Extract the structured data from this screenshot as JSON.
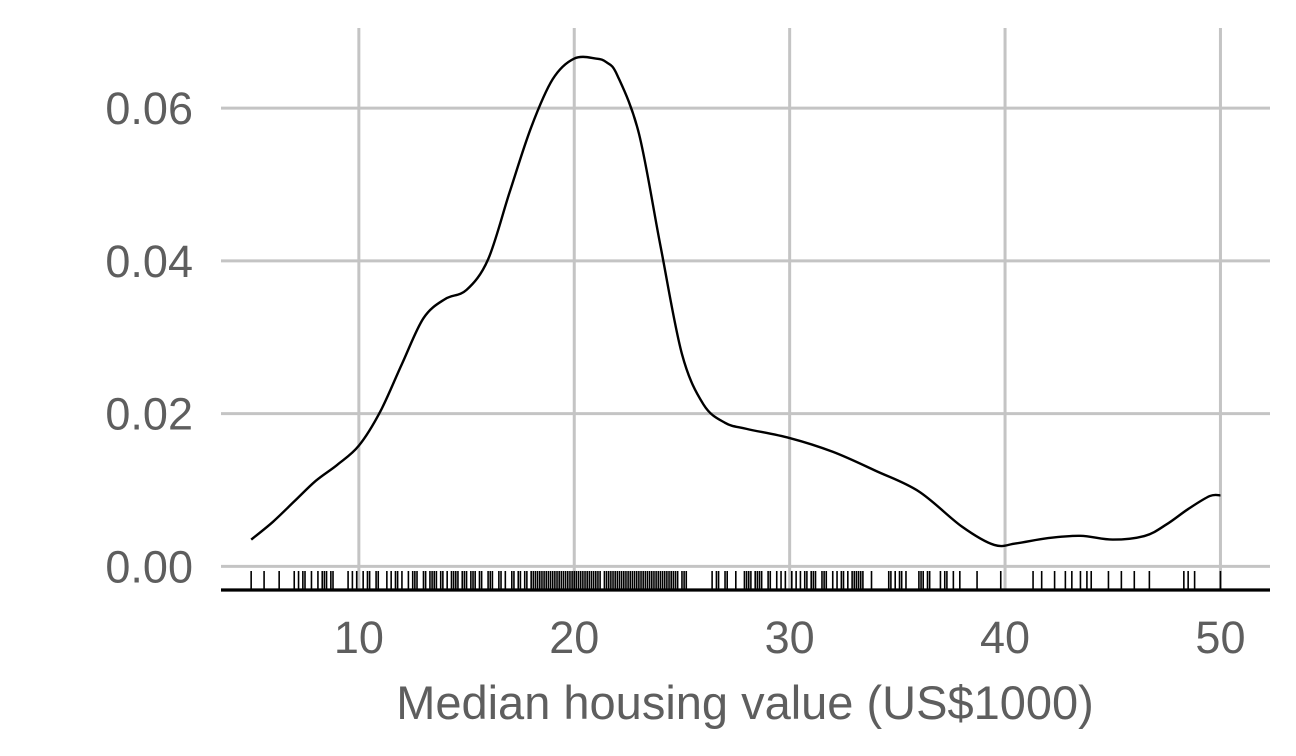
{
  "chart_data": {
    "type": "area",
    "subtype": "density-with-rug",
    "xlabel": "Median housing value (US$1000)",
    "ylabel": "",
    "title": "",
    "xlim": [
      3.6,
      52.3
    ],
    "ylim": [
      -0.0031,
      0.0705
    ],
    "x_ticks": [
      10,
      20,
      30,
      40,
      50
    ],
    "x_tick_labels": [
      "10",
      "20",
      "30",
      "40",
      "50"
    ],
    "y_ticks": [
      0,
      0.02,
      0.04,
      0.06
    ],
    "y_tick_labels": [
      "0.00",
      "0.02",
      "0.04",
      "0.06"
    ],
    "grid": true,
    "legend": "none",
    "curve_color": "#000000",
    "grid_color": "#c4c4c4",
    "density": {
      "x": [
        5.0,
        6.0,
        7.0,
        8.0,
        9.0,
        10.0,
        11.0,
        12.0,
        13.0,
        14.0,
        15.0,
        16.0,
        17.0,
        18.0,
        19.0,
        20.0,
        21.0,
        21.5,
        22.0,
        23.0,
        24.0,
        25.0,
        26.0,
        27.0,
        28.0,
        30.0,
        32.0,
        34.0,
        36.0,
        38.0,
        39.5,
        40.5,
        42.0,
        43.5,
        45.0,
        46.5,
        47.5,
        48.5,
        49.5,
        50.0
      ],
      "y": [
        0.0035,
        0.0058,
        0.0085,
        0.0112,
        0.0133,
        0.0158,
        0.0203,
        0.0265,
        0.0325,
        0.035,
        0.0362,
        0.0402,
        0.049,
        0.0575,
        0.0638,
        0.0665,
        0.0665,
        0.066,
        0.0643,
        0.0567,
        0.042,
        0.0278,
        0.0212,
        0.0188,
        0.018,
        0.0168,
        0.015,
        0.0125,
        0.0098,
        0.0052,
        0.0028,
        0.003,
        0.0037,
        0.004,
        0.0035,
        0.004,
        0.0055,
        0.0075,
        0.0092,
        0.0093
      ]
    },
    "rug": [
      5.0,
      5.6,
      6.3,
      7.0,
      7.2,
      7.4,
      7.5,
      7.8,
      8.1,
      8.3,
      8.4,
      8.5,
      8.7,
      8.8,
      9.5,
      9.7,
      9.9,
      10.2,
      10.4,
      10.5,
      10.8,
      10.9,
      11.3,
      11.5,
      11.7,
      11.8,
      12.0,
      12.3,
      12.5,
      12.6,
      12.7,
      13.0,
      13.1,
      13.3,
      13.4,
      13.5,
      13.6,
      13.8,
      13.9,
      14.1,
      14.3,
      14.4,
      14.5,
      14.6,
      14.8,
      14.9,
      15.0,
      15.2,
      15.3,
      15.4,
      15.6,
      15.7,
      16.0,
      16.1,
      16.2,
      16.5,
      16.6,
      16.8,
      17.1,
      17.2,
      17.4,
      17.5,
      17.7,
      17.8,
      18.0,
      18.1,
      18.2,
      18.3,
      18.4,
      18.5,
      18.6,
      18.7,
      18.8,
      18.9,
      19.0,
      19.1,
      19.2,
      19.3,
      19.4,
      19.5,
      19.6,
      19.7,
      19.8,
      19.9,
      20.0,
      20.1,
      20.2,
      20.3,
      20.4,
      20.5,
      20.6,
      20.7,
      20.8,
      20.9,
      21.0,
      21.1,
      21.2,
      21.4,
      21.5,
      21.6,
      21.7,
      21.8,
      21.9,
      22.0,
      22.1,
      22.2,
      22.3,
      22.4,
      22.5,
      22.6,
      22.7,
      22.8,
      22.9,
      23.0,
      23.1,
      23.2,
      23.3,
      23.4,
      23.5,
      23.6,
      23.7,
      23.8,
      23.9,
      24.0,
      24.1,
      24.2,
      24.3,
      24.4,
      24.5,
      24.6,
      24.7,
      24.8,
      25.0,
      25.1,
      25.2,
      26.4,
      26.6,
      26.7,
      27.0,
      27.1,
      27.5,
      27.9,
      28.0,
      28.1,
      28.2,
      28.4,
      28.5,
      28.6,
      28.7,
      29.0,
      29.1,
      29.4,
      29.6,
      29.8,
      30.1,
      30.3,
      30.5,
      30.7,
      30.8,
      31.0,
      31.1,
      31.2,
      31.5,
      31.6,
      31.7,
      32.0,
      32.2,
      32.4,
      32.5,
      32.7,
      32.9,
      33.0,
      33.1,
      33.2,
      33.3,
      33.4,
      33.8,
      34.6,
      34.7,
      34.9,
      35.1,
      35.2,
      35.4,
      36.0,
      36.1,
      36.2,
      36.4,
      36.5,
      37.0,
      37.2,
      37.3,
      37.6,
      37.9,
      38.7,
      39.8,
      41.3,
      41.7,
      42.3,
      42.8,
      43.1,
      43.5,
      43.8,
      44.0,
      44.8,
      45.4,
      46.0,
      46.7,
      48.3,
      48.5,
      48.8,
      50.0
    ]
  }
}
